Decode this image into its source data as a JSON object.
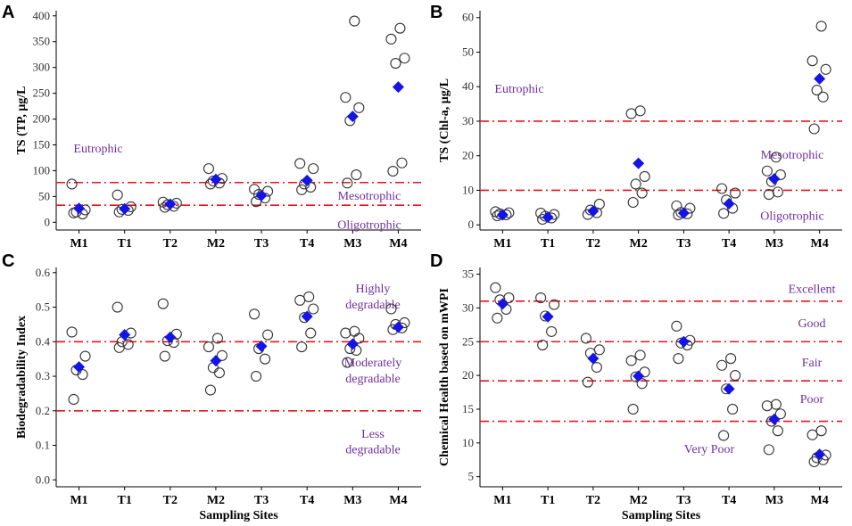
{
  "chart_data": [
    {
      "panel": "A",
      "type": "scatter",
      "ylabel": "TS (TP, μg/L",
      "xlabel": "",
      "ylim": [
        -15,
        410
      ],
      "yticks": [
        0,
        50,
        100,
        150,
        200,
        250,
        300,
        350,
        400
      ],
      "categories": [
        "M1",
        "T1",
        "T2",
        "M2",
        "T3",
        "T4",
        "M3",
        "M4"
      ],
      "points": [
        [
          18,
          16,
          20,
          24,
          74
        ],
        [
          20,
          23,
          25,
          30,
          53
        ],
        [
          29,
          31,
          34,
          37,
          39
        ],
        [
          74,
          76,
          80,
          85,
          104
        ],
        [
          40,
          47,
          54,
          60,
          64
        ],
        [
          63,
          68,
          74,
          104,
          114
        ],
        [
          76,
          92,
          197,
          222,
          242,
          390
        ],
        [
          99,
          115,
          308,
          318,
          355,
          376
        ]
      ],
      "means": [
        27,
        26,
        35,
        83,
        52,
        81,
        205,
        262
      ],
      "thresholds": [
        77,
        33
      ],
      "zones": [
        {
          "text": "Eutrophic",
          "y": 144
        },
        {
          "text": "Mesotrophic",
          "y": 52
        },
        {
          "text": "Oligotrophic",
          "y": -4
        }
      ]
    },
    {
      "panel": "B",
      "type": "scatter",
      "ylabel": "TS (Chl-a, μg/L",
      "xlabel": "",
      "ylim": [
        -1.5,
        62
      ],
      "yticks": [
        0,
        10,
        20,
        30,
        40,
        50,
        60
      ],
      "categories": [
        "M1",
        "T1",
        "T2",
        "M2",
        "T3",
        "T4",
        "M3",
        "M4"
      ],
      "points": [
        [
          2.6,
          2.9,
          3.2,
          3.5,
          3.8
        ],
        [
          1.6,
          2.0,
          2.5,
          3.0,
          3.4
        ],
        [
          3.0,
          3.5,
          4.3,
          6.0
        ],
        [
          6.5,
          9.2,
          11.8,
          14.0,
          32.2,
          33.0
        ],
        [
          2.9,
          3.2,
          3.6,
          4.8,
          5.5
        ],
        [
          3.3,
          4.8,
          7.2,
          9.2,
          10.5
        ],
        [
          8.8,
          9.5,
          12.5,
          14.5,
          15.6,
          19.6
        ],
        [
          27.8,
          37.0,
          39.0,
          45.0,
          47.5,
          57.5
        ]
      ],
      "means": [
        2.9,
        2.2,
        4.0,
        17.8,
        3.4,
        6.1,
        13.3,
        42.3
      ],
      "thresholds": [
        30,
        10
      ],
      "zones": [
        {
          "text": "Eutrophic",
          "y": 39.5
        },
        {
          "text": "Mesotrophic",
          "y": 20.5
        },
        {
          "text": "Oligotrophic",
          "y": 2.8
        }
      ]
    },
    {
      "panel": "C",
      "type": "scatter",
      "ylabel": "Biodegradability Index",
      "xlabel": "Sampling Sites",
      "ylim": [
        -0.02,
        0.615
      ],
      "yticks": [
        0.0,
        0.1,
        0.2,
        0.3,
        0.4,
        0.5,
        0.6
      ],
      "yticklabels": [
        "0.0",
        "0.1",
        "0.2",
        "0.3",
        "0.4",
        "0.5",
        "0.6"
      ],
      "categories": [
        "M1",
        "T1",
        "T2",
        "M2",
        "T3",
        "T4",
        "M3",
        "M4"
      ],
      "points": [
        [
          0.233,
          0.305,
          0.318,
          0.358,
          0.428
        ],
        [
          0.383,
          0.392,
          0.4,
          0.425,
          0.5
        ],
        [
          0.358,
          0.398,
          0.403,
          0.422,
          0.51
        ],
        [
          0.26,
          0.31,
          0.325,
          0.36,
          0.385,
          0.41
        ],
        [
          0.3,
          0.35,
          0.38,
          0.42,
          0.48
        ],
        [
          0.385,
          0.425,
          0.47,
          0.495,
          0.52,
          0.53
        ],
        [
          0.34,
          0.375,
          0.38,
          0.41,
          0.425,
          0.43
        ],
        [
          0.435,
          0.44,
          0.45,
          0.455,
          0.495
        ]
      ],
      "means": [
        0.327,
        0.42,
        0.413,
        0.345,
        0.387,
        0.473,
        0.393,
        0.442
      ],
      "thresholds": [
        0.4,
        0.2
      ],
      "zones": [
        {
          "text": "Highly",
          "y": 0.555
        },
        {
          "text": "degradable",
          "y": 0.509
        },
        {
          "text": "Moderately",
          "y": 0.342
        },
        {
          "text": "degradable",
          "y": 0.295
        },
        {
          "text": "Less",
          "y": 0.135
        },
        {
          "text": "degradable",
          "y": 0.09
        }
      ]
    },
    {
      "panel": "D",
      "type": "scatter",
      "ylabel": "Chemical Health based on mWPI",
      "xlabel": "Sampling Sites",
      "ylim": [
        3.5,
        36
      ],
      "yticks": [
        5,
        10,
        15,
        20,
        25,
        30,
        35
      ],
      "categories": [
        "M1",
        "T1",
        "T2",
        "M2",
        "T3",
        "T4",
        "M3",
        "M4"
      ],
      "points": [
        [
          28.5,
          29.8,
          31.2,
          31.5,
          33.0
        ],
        [
          24.5,
          26.5,
          28.8,
          30.5,
          31.5
        ],
        [
          19.0,
          21.2,
          23.3,
          23.8,
          25.5
        ],
        [
          15.0,
          18.8,
          19.8,
          20.5,
          22.2,
          23.0
        ],
        [
          22.5,
          24.5,
          24.8,
          25.2,
          27.3
        ],
        [
          11.1,
          15.0,
          18.0,
          20.0,
          21.5,
          22.5
        ],
        [
          9.0,
          11.8,
          13.2,
          14.3,
          15.5,
          15.7
        ],
        [
          7.2,
          7.5,
          7.8,
          8.2,
          11.2,
          11.8
        ]
      ],
      "means": [
        30.6,
        28.7,
        22.5,
        19.9,
        25.0,
        18.0,
        13.5,
        8.3
      ],
      "thresholds": [
        31,
        25,
        19.2,
        13.2
      ],
      "zones": [
        {
          "text": "Excellent",
          "y": 32.9
        },
        {
          "text": "Good",
          "y": 27.8
        },
        {
          "text": "Fair",
          "y": 22.0
        },
        {
          "text": "Poor",
          "y": 16.6
        },
        {
          "text": "Very Poor",
          "y": 9.2
        }
      ]
    }
  ],
  "colors": {
    "threshold": "#e8141c",
    "mean_marker": "#1414e6",
    "point_stroke": "#333333",
    "zone_text": "#7030a0"
  }
}
